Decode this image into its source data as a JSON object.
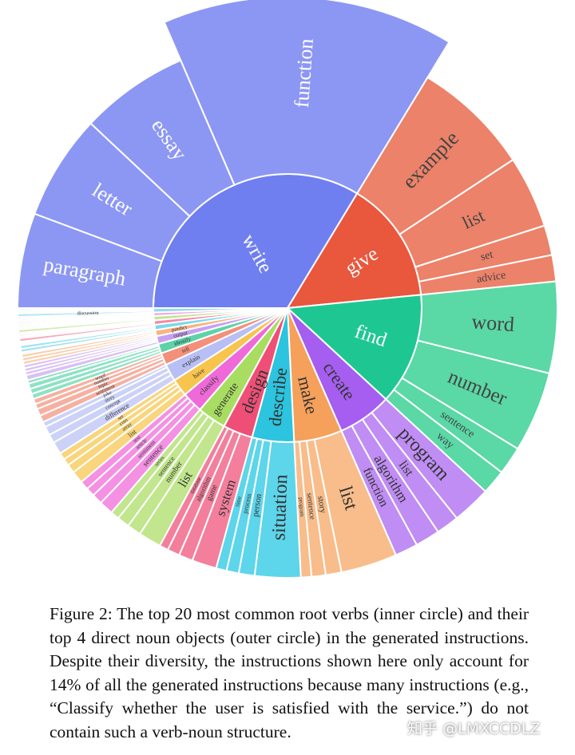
{
  "chart_data": {
    "type": "sunburst",
    "title": "",
    "verbs": [
      {
        "name": "write",
        "color": "#6f7ff0",
        "outer_color": "#8c97f4",
        "children": [
          {
            "name": "paragraph",
            "value": 5.4
          },
          {
            "name": "letter",
            "value": 6.0
          },
          {
            "name": "essay",
            "value": 6.2
          },
          {
            "name": "function",
            "value": 14.4
          }
        ]
      },
      {
        "name": "give",
        "color": "#e9573d",
        "outer_color": "#ec8269",
        "children": [
          {
            "name": "example",
            "value": 6.7
          },
          {
            "name": "list",
            "value": 4.1
          },
          {
            "name": "set",
            "value": 1.7
          },
          {
            "name": "advice",
            "value": 1.5
          }
        ]
      },
      {
        "name": "find",
        "color": "#1ec791",
        "outer_color": "#5ad8a6",
        "children": [
          {
            "name": "word",
            "value": 5.2
          },
          {
            "name": "number",
            "value": 4.6
          },
          {
            "name": "sentence",
            "value": 1.6
          },
          {
            "name": "way",
            "value": 1.4
          }
        ]
      },
      {
        "name": "create",
        "color": "#a55ef0",
        "outer_color": "#bf8df3",
        "children": [
          {
            "name": "program",
            "value": 2.2
          },
          {
            "name": "list",
            "value": 1.3
          },
          {
            "name": "algorithm",
            "value": 1.4
          },
          {
            "name": "function",
            "value": 1.3
          }
        ]
      },
      {
        "name": "make",
        "color": "#f5a05b",
        "outer_color": "#f8bd8b",
        "children": [
          {
            "name": "list",
            "value": 3.2
          },
          {
            "name": "story",
            "value": 0.9
          },
          {
            "name": "sentence",
            "value": 0.8
          },
          {
            "name": "program",
            "value": 0.6
          }
        ]
      },
      {
        "name": "describe",
        "color": "#2cc4de",
        "outer_color": "#5dd5ea",
        "children": [
          {
            "name": "situation",
            "value": 2.6
          },
          {
            "name": "person",
            "value": 0.9
          },
          {
            "name": "process",
            "value": 0.7
          },
          {
            "name": "time",
            "value": 0.6
          }
        ]
      },
      {
        "name": "design",
        "color": "#ef4f77",
        "outer_color": "#f37f9c",
        "children": [
          {
            "name": "system",
            "value": 1.4
          },
          {
            "name": "game",
            "value": 0.8
          },
          {
            "name": "algorithm",
            "value": 0.7
          },
          {
            "name": "database",
            "value": 0.5
          }
        ]
      },
      {
        "name": "generate",
        "color": "#a8dd62",
        "outer_color": "#c1e68d",
        "children": [
          {
            "name": "list",
            "value": 1.3
          },
          {
            "name": "number",
            "value": 0.8
          },
          {
            "name": "sentence",
            "value": 0.7
          },
          {
            "name": "series",
            "value": 0.5
          }
        ]
      },
      {
        "name": "classify",
        "color": "#ef6ad8",
        "outer_color": "#f491e3",
        "children": [
          {
            "name": "sentence",
            "value": 0.8
          },
          {
            "name": "sentiment",
            "value": 0.6
          },
          {
            "name": "article",
            "value": 0.5
          },
          {
            "name": "text",
            "value": 0.5
          }
        ]
      },
      {
        "name": "have",
        "color": "#f7c44d",
        "outer_color": "#f9d57d",
        "children": [
          {
            "name": "list",
            "value": 0.7
          },
          {
            "name": "array",
            "value": 0.5
          },
          {
            "name": "coin",
            "value": 0.4
          },
          {
            "name": "set",
            "value": 0.4
          }
        ]
      },
      {
        "name": "explain",
        "color": "#b7bff4",
        "outer_color": "#ccd2f7",
        "children": [
          {
            "name": "difference",
            "value": 0.7
          },
          {
            "name": "concept",
            "value": 0.5
          },
          {
            "name": "story",
            "value": 0.5
          },
          {
            "name": "joke",
            "value": 0.3
          }
        ]
      },
      {
        "name": "tell",
        "color": "#f3907a",
        "outer_color": "#f6b0a1",
        "children": [
          {
            "name": "sentiment",
            "value": 0.4
          },
          {
            "name": "topic",
            "value": 0.4
          },
          {
            "name": "number",
            "value": 0.3
          },
          {
            "name": "word",
            "value": 0.3
          }
        ]
      },
      {
        "name": "identify",
        "color": "#5cd3a8",
        "outer_color": "#8ee2c3",
        "children": [
          {
            "name": "",
            "value": 0.3
          },
          {
            "name": "",
            "value": 0.3
          },
          {
            "name": "",
            "value": 0.3
          },
          {
            "name": "",
            "value": 0.2
          }
        ]
      },
      {
        "name": "output",
        "color": "#c7a0f2",
        "outer_color": "#dabff6",
        "children": [
          {
            "name": "",
            "value": 0.3
          },
          {
            "name": "",
            "value": 0.2
          },
          {
            "name": "",
            "value": 0.2
          },
          {
            "name": "",
            "value": 0.2
          }
        ]
      },
      {
        "name": "predict",
        "color": "#f8b482",
        "outer_color": "#fbcdaa",
        "children": [
          {
            "name": "",
            "value": 0.2
          },
          {
            "name": "",
            "value": 0.2
          },
          {
            "name": "",
            "value": 0.2
          },
          {
            "name": "",
            "value": 0.1
          }
        ]
      },
      {
        "name": "",
        "color": "#7ad9ec",
        "outer_color": "#9fe4f2",
        "children": [
          {
            "name": "",
            "value": 0.2
          },
          {
            "name": "",
            "value": 0.2
          },
          {
            "name": "",
            "value": 0.1
          },
          {
            "name": "",
            "value": 0.1
          }
        ]
      },
      {
        "name": "",
        "color": "#f28ba5",
        "outer_color": "#f6acbf",
        "children": [
          {
            "name": "",
            "value": 0.2
          },
          {
            "name": "",
            "value": 0.1
          },
          {
            "name": "",
            "value": 0.1
          },
          {
            "name": "",
            "value": 0.1
          }
        ]
      },
      {
        "name": "",
        "color": "#c3e49a",
        "outer_color": "#d6ecb8",
        "children": [
          {
            "name": "",
            "value": 0.2
          },
          {
            "name": "",
            "value": 0.1
          },
          {
            "name": "",
            "value": 0.1
          },
          {
            "name": "",
            "value": 0.1
          }
        ]
      },
      {
        "name": "",
        "color": "#f3a1e4",
        "outer_color": "#f7c0ed",
        "children": [
          {
            "name": "",
            "value": 0.1
          },
          {
            "name": "",
            "value": 0.1
          },
          {
            "name": "",
            "value": 0.1
          },
          {
            "name": "",
            "value": 0.1
          }
        ]
      },
      {
        "name": "",
        "color": "#8fdcf0",
        "outer_color": "#b3e8f5",
        "children": [
          {
            "name": "discussion",
            "value": 0.2
          },
          {
            "name": "",
            "value": 0.1
          },
          {
            "name": "",
            "value": 0.1
          },
          {
            "name": "",
            "value": 0.1
          }
        ]
      }
    ]
  },
  "caption": {
    "text": "Figure 2: The top 20 most common root verbs (inner circle) and their top 4 direct noun objects (outer circle) in the generated instructions. Despite their diversity, the instructions shown here only account for 14% of all the generated instructions because many instructions (e.g., “Classify whether the user is satisfied with the service.”) do not contain such a verb-noun structure."
  },
  "watermark": {
    "text": "知乎 @LMXCCDLZ"
  }
}
